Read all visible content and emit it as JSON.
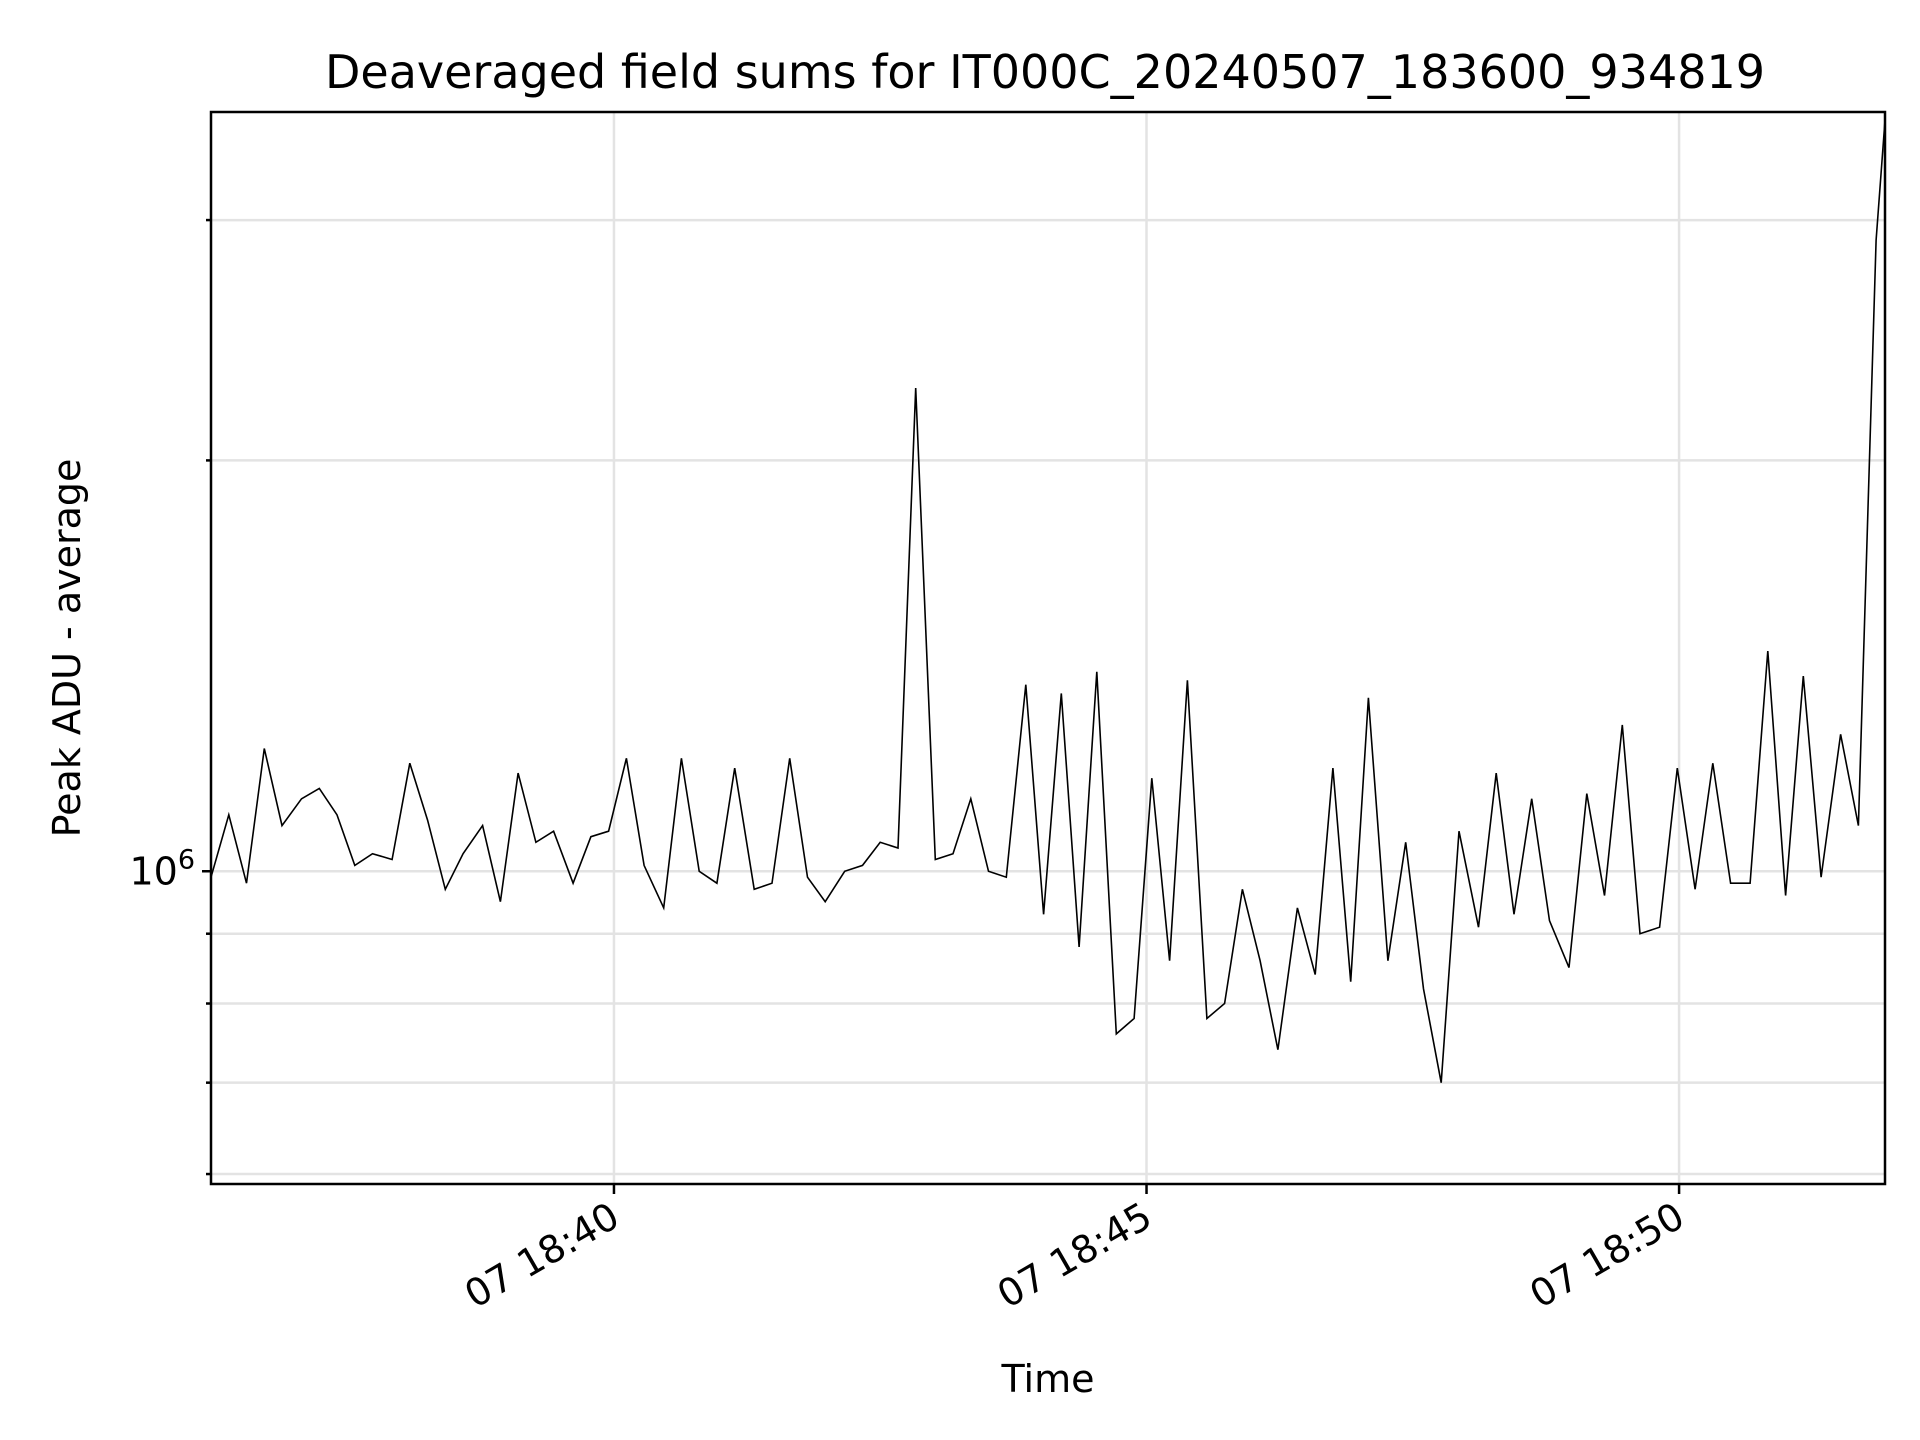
{
  "chart_data": {
    "type": "line",
    "title": "Deaveraged field sums for IT000C_20240507_183600_934819",
    "xlabel": "Time",
    "ylabel": "Peak ADU - average",
    "yscale": "log",
    "grid": true,
    "x_ticks": [
      {
        "t": "18:40",
        "label": "07 18:40"
      },
      {
        "t": "18:45",
        "label": "07 18:45"
      },
      {
        "t": "18:50",
        "label": "07 18:50"
      }
    ],
    "y_ticks": [
      {
        "v": 1000000,
        "base": "10",
        "exp": "6"
      }
    ],
    "xlim": [
      "18:36:13",
      "18:51:56"
    ],
    "ylim": [
      590000,
      3600000
    ],
    "series": [
      {
        "name": "",
        "color": "#000000",
        "x": [
          "18:36:13",
          "18:36:23",
          "18:36:33",
          "18:36:43",
          "18:36:53",
          "18:37:04",
          "18:37:14",
          "18:37:24",
          "18:37:34",
          "18:37:44",
          "18:37:55",
          "18:38:05",
          "18:38:15",
          "18:38:25",
          "18:38:35",
          "18:38:46",
          "18:38:56",
          "18:39:06",
          "18:39:16",
          "18:39:26",
          "18:39:37",
          "18:39:47",
          "18:39:57",
          "18:40:07",
          "18:40:17",
          "18:40:28",
          "18:40:38",
          "18:40:48",
          "18:40:58",
          "18:41:08",
          "18:41:19",
          "18:41:29",
          "18:41:39",
          "18:41:49",
          "18:41:59",
          "18:42:10",
          "18:42:20",
          "18:42:30",
          "18:42:40",
          "18:42:50",
          "18:43:01",
          "18:43:11",
          "18:43:21",
          "18:43:31",
          "18:43:41",
          "18:43:52",
          "18:44:02",
          "18:44:12",
          "18:44:22",
          "18:44:32",
          "18:44:43",
          "18:44:53",
          "18:45:03",
          "18:45:13",
          "18:45:23",
          "18:45:34",
          "18:45:44",
          "18:45:54",
          "18:46:04",
          "18:46:14",
          "18:46:25",
          "18:46:35",
          "18:46:45",
          "18:46:55",
          "18:47:05",
          "18:47:16",
          "18:47:26",
          "18:47:36",
          "18:47:46",
          "18:47:56",
          "18:48:07",
          "18:48:17",
          "18:48:27",
          "18:48:37",
          "18:48:47",
          "18:48:58",
          "18:49:08",
          "18:49:18",
          "18:49:28",
          "18:49:38",
          "18:49:49",
          "18:49:59",
          "18:50:09",
          "18:50:19",
          "18:50:29",
          "18:50:40",
          "18:50:50",
          "18:51:00",
          "18:51:10",
          "18:51:20",
          "18:51:31",
          "18:51:41",
          "18:51:51",
          "18:51:56"
        ],
        "y": [
          990000,
          1100000,
          980000,
          1230000,
          1080000,
          1130000,
          1150000,
          1100000,
          1010000,
          1030000,
          1020000,
          1200000,
          1090000,
          970000,
          1030000,
          1080000,
          950000,
          1180000,
          1050000,
          1070000,
          980000,
          1060000,
          1070000,
          1210000,
          1010000,
          940000,
          1210000,
          1000000,
          980000,
          1190000,
          970000,
          980000,
          1210000,
          990000,
          950000,
          1000000,
          1010000,
          1050000,
          1040000,
          2260000,
          1020000,
          1030000,
          1130000,
          1000000,
          990000,
          1370000,
          930000,
          1350000,
          880000,
          1400000,
          760000,
          780000,
          1170000,
          860000,
          1380000,
          780000,
          800000,
          970000,
          860000,
          740000,
          940000,
          840000,
          1190000,
          830000,
          1340000,
          860000,
          1050000,
          820000,
          700000,
          1070000,
          910000,
          1180000,
          930000,
          1130000,
          920000,
          850000,
          1140000,
          960000,
          1280000,
          900000,
          910000,
          1190000,
          970000,
          1200000,
          980000,
          980000,
          1450000,
          960000,
          1390000,
          990000,
          1260000,
          1080000,
          2900000,
          3550000
        ]
      }
    ]
  }
}
